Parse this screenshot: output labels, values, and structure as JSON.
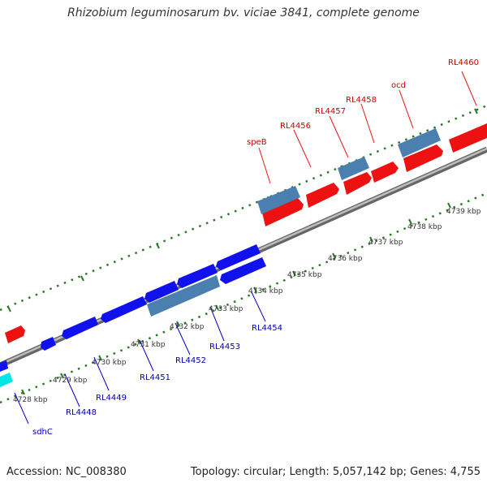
{
  "title": "Rhizobium leguminosarum bv. viciae 3841, complete genome",
  "footer": {
    "accession": "Accession: NC_008380",
    "summary": "Topology: circular; Length: 5,057,142 bp; Genes: 4,755"
  },
  "colors": {
    "forward_gene": "#ff0000",
    "reverse_gene": "#0000ff",
    "rna_or_other": "#4a7fb0",
    "highlight_gene": "#00e5e5",
    "backbone": "#808080",
    "tick_marks": "#2a7a2a",
    "label_forward": "#cc0000",
    "label_reverse": "#0000aa"
  },
  "scale_labels": [
    "4728 kbp",
    "4729 kbp",
    "4730 kbp",
    "4731 kbp",
    "4732 kbp",
    "4733 kbp",
    "4734 kbp",
    "4735 kbp",
    "4736 kbp",
    "4737 kbp",
    "4738 kbp",
    "4739 kbp"
  ],
  "forward_genes": [
    "speB",
    "RL4456",
    "RL4457",
    "RL4458",
    "ocd",
    "RL4460"
  ],
  "reverse_genes": [
    "sdhC",
    "RL4448",
    "RL4449",
    "RL4451",
    "RL4452",
    "RL4453",
    "RL4454"
  ]
}
